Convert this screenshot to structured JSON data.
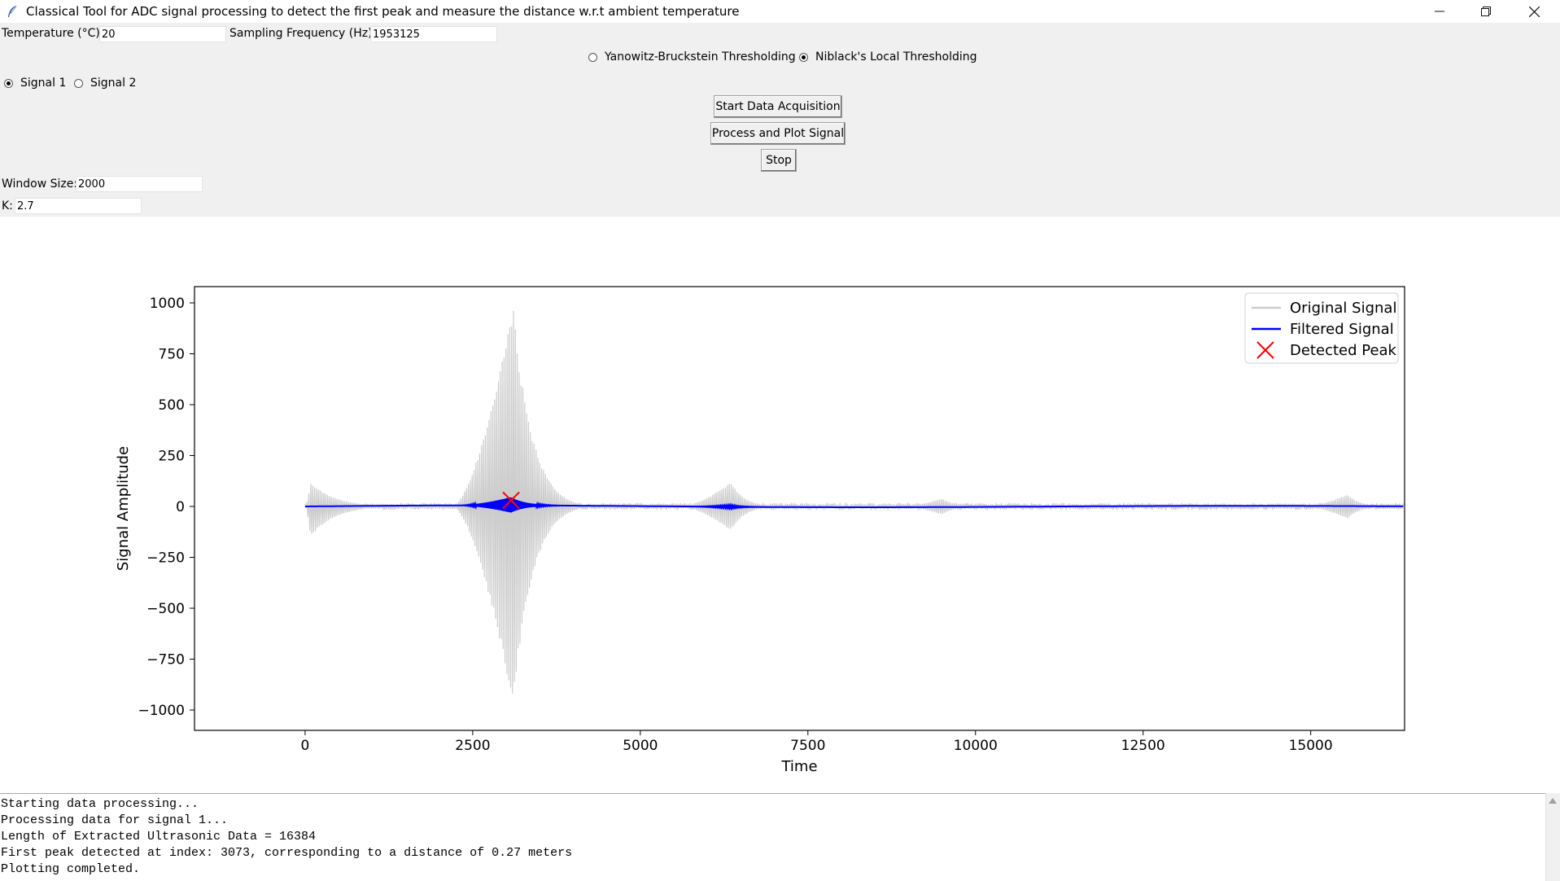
{
  "window": {
    "title": "Classical Tool for ADC signal processing to detect the first peak and measure the distance w.r.t ambient temperature",
    "icon": "feather-icon",
    "minimize_icon": "minimize-icon",
    "restore_icon": "restore-icon",
    "close_icon": "close-icon"
  },
  "controls": {
    "temperature_label": "Temperature (°C):",
    "temperature_value": "20",
    "sampling_label": "Sampling Frequency (Hz):",
    "sampling_value": "1953125",
    "threshold_options": [
      {
        "label": "Yanowitz-Bruckstein Thresholding",
        "selected": false
      },
      {
        "label": "Niblack's Local Thresholding",
        "selected": true
      }
    ],
    "signal_options": [
      {
        "label": "Signal 1",
        "selected": true
      },
      {
        "label": "Signal 2",
        "selected": false
      }
    ],
    "start_button": "Start Data Acquisition",
    "process_button": "Process and Plot Signal",
    "stop_button": "Stop",
    "window_size_label": "Window Size:",
    "window_size_value": "2000",
    "k_label": "K:",
    "k_value": "2.7"
  },
  "chart_data": {
    "type": "line",
    "xlabel": "Time",
    "ylabel": "Signal Amplitude",
    "xlim": [
      -1650,
      16400
    ],
    "ylim": [
      -1100,
      1080
    ],
    "xticks": [
      0,
      2500,
      5000,
      7500,
      10000,
      12500,
      15000
    ],
    "yticks": [
      1000,
      750,
      500,
      250,
      0,
      -250,
      -500,
      -750,
      -1000
    ],
    "ytick_labels": [
      "1000",
      "750",
      "500",
      "250",
      "0",
      "−250",
      "−500",
      "−750",
      "−1000"
    ],
    "legend_position": "top-right",
    "series": [
      {
        "name": "Original Signal",
        "color": "#cccccc",
        "envelope_bursts": [
          {
            "x_start": 0,
            "x_peak": 80,
            "x_end": 1600,
            "amp_pos": 120,
            "amp_neg": 150
          },
          {
            "x_start": 2200,
            "x_peak": 3100,
            "x_end": 4300,
            "amp_pos": 990,
            "amp_neg": 990
          },
          {
            "x_start": 5600,
            "x_peak": 6350,
            "x_end": 7200,
            "amp_pos": 120,
            "amp_neg": 120
          },
          {
            "x_start": 8900,
            "x_peak": 9500,
            "x_end": 10300,
            "amp_pos": 40,
            "amp_neg": 40
          },
          {
            "x_start": 14900,
            "x_peak": 15550,
            "x_end": 16300,
            "amp_pos": 60,
            "amp_neg": 60
          }
        ],
        "baseline_noise": 12,
        "x_max": 16383
      },
      {
        "name": "Filtered Signal",
        "color": "#0000ff",
        "envelope_bursts": [
          {
            "x_start": 2300,
            "x_peak": 3070,
            "x_end": 4000,
            "amp_pos": 40,
            "amp_neg": 35
          },
          {
            "x_start": 5700,
            "x_peak": 6350,
            "x_end": 7100,
            "amp_pos": 6,
            "amp_neg": 6
          }
        ],
        "x_max": 16383
      },
      {
        "name": "Detected Peak",
        "color": "#ff0000",
        "marker": "x",
        "points": [
          {
            "x": 3073,
            "y": 30
          }
        ]
      }
    ]
  },
  "console": {
    "lines": [
      "Starting data processing...",
      "Processing data for signal 1...",
      "Length of Extracted Ultrasonic Data = 16384",
      "First peak detected at index: 3073, corresponding to a distance of 0.27 meters",
      "Plotting completed."
    ]
  }
}
